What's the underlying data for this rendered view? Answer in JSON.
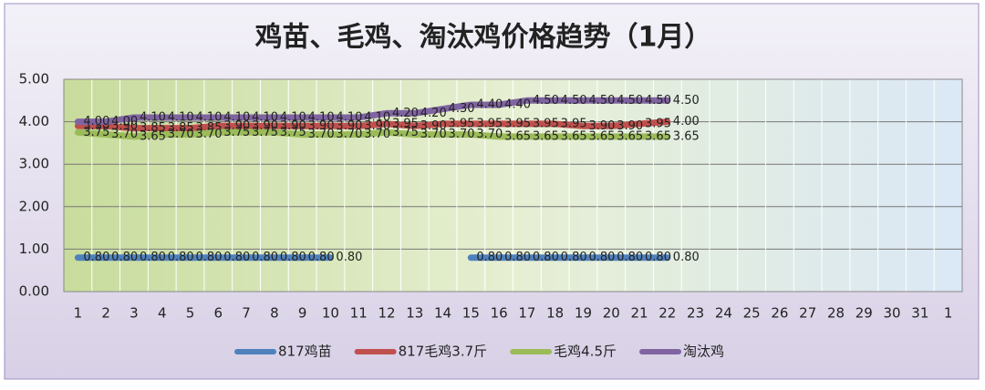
{
  "chart_data": {
    "type": "line",
    "title": "鸡苗、毛鸡、淘汰鸡价格趋势（1月）",
    "categories": [
      "1",
      "2",
      "3",
      "4",
      "5",
      "6",
      "7",
      "8",
      "9",
      "10",
      "11",
      "12",
      "13",
      "14",
      "15",
      "16",
      "17",
      "18",
      "19",
      "20",
      "21",
      "22",
      "23",
      "24",
      "25",
      "26",
      "27",
      "28",
      "29",
      "30",
      "31",
      "1"
    ],
    "ylim": [
      0,
      5
    ],
    "yticks": [
      {
        "value": 0,
        "label": "0.00"
      },
      {
        "value": 1,
        "label": "1.00"
      },
      {
        "value": 2,
        "label": "2.00"
      },
      {
        "value": 3,
        "label": "3.00"
      },
      {
        "value": 4,
        "label": "4.00"
      },
      {
        "value": 5,
        "label": "5.00"
      }
    ],
    "grid": true,
    "legend": "bottom",
    "series": [
      {
        "name": "817鸡苗",
        "color": "#4f81bd",
        "values": [
          0.8,
          0.8,
          0.8,
          0.8,
          0.8,
          0.8,
          0.8,
          0.8,
          0.8,
          0.8,
          null,
          null,
          null,
          null,
          0.8,
          0.8,
          0.8,
          0.8,
          0.8,
          0.8,
          0.8,
          0.8,
          null,
          null,
          null,
          null,
          null,
          null,
          null,
          null,
          null,
          null
        ],
        "value_labels": [
          "0.80",
          "0.80",
          "0.80",
          "0.80",
          "0.80",
          "0.80",
          "0.80",
          "0.80",
          "0.80",
          "0.80",
          null,
          null,
          null,
          null,
          "0.80",
          "0.80",
          "0.80",
          "0.80",
          "0.80",
          "0.80",
          "0.80",
          "0.80",
          null,
          null,
          null,
          null,
          null,
          null,
          null,
          null,
          null,
          null
        ]
      },
      {
        "name": "817毛鸡3.7斤",
        "color": "#c0504d",
        "values": [
          3.9,
          3.9,
          3.85,
          3.85,
          3.85,
          3.9,
          3.9,
          3.9,
          3.9,
          3.9,
          3.9,
          3.95,
          3.9,
          3.95,
          3.95,
          3.95,
          3.95,
          3.95,
          3.9,
          3.9,
          3.95,
          4.0,
          null,
          null,
          null,
          null,
          null,
          null,
          null,
          null,
          null,
          null
        ],
        "value_labels": [
          "3.90",
          "3.90",
          "3.85",
          "3.85",
          "3.85",
          "3.90",
          "3.90",
          "3.90",
          "3.90",
          "3.90",
          "3.90",
          "3.95",
          "3.90",
          "3.95",
          "3.95",
          "3.95",
          "3.95",
          "3.95",
          "3.90",
          "3.90",
          "3.95",
          "4.00",
          null,
          null,
          null,
          null,
          null,
          null,
          null,
          null,
          null,
          null
        ]
      },
      {
        "name": "毛鸡4.5斤",
        "color": "#9bbb59",
        "values": [
          3.75,
          3.7,
          3.65,
          3.7,
          3.7,
          3.75,
          3.75,
          3.75,
          3.7,
          3.7,
          3.7,
          3.75,
          3.7,
          3.7,
          3.7,
          3.65,
          3.65,
          3.65,
          3.65,
          3.65,
          3.65,
          3.65,
          null,
          null,
          null,
          null,
          null,
          null,
          null,
          null,
          null,
          null
        ],
        "value_labels": [
          "3.75",
          "3.70",
          "3.65",
          "3.70",
          "3.70",
          "3.75",
          "3.75",
          "3.75",
          "3.70",
          "3.70",
          "3.70",
          "3.75",
          "3.70",
          "3.70",
          "3.70",
          "3.65",
          "3.65",
          "3.65",
          "3.65",
          "3.65",
          "3.65",
          "3.65",
          null,
          null,
          null,
          null,
          null,
          null,
          null,
          null,
          null,
          null
        ]
      },
      {
        "name": "淘汰鸡",
        "color": "#8064a2",
        "values": [
          4.0,
          4.0,
          4.1,
          4.1,
          4.1,
          4.1,
          4.1,
          4.1,
          4.1,
          4.1,
          4.1,
          4.2,
          4.2,
          4.3,
          4.4,
          4.4,
          4.5,
          4.5,
          4.5,
          4.5,
          4.5,
          4.5,
          null,
          null,
          null,
          null,
          null,
          null,
          null,
          null,
          null,
          null
        ],
        "value_labels": [
          "4.00",
          "4.00",
          "4.10",
          "4.10",
          "4.10",
          "4.10",
          "4.10",
          "4.10",
          "4.10",
          "4.10",
          "4.10",
          "4.20",
          "4.20",
          "4.30",
          "4.40",
          "4.40",
          "4.50",
          "4.50",
          "4.50",
          "4.50",
          "4.50",
          "4.50",
          null,
          null,
          null,
          null,
          null,
          null,
          null,
          null,
          null,
          null
        ]
      }
    ]
  }
}
